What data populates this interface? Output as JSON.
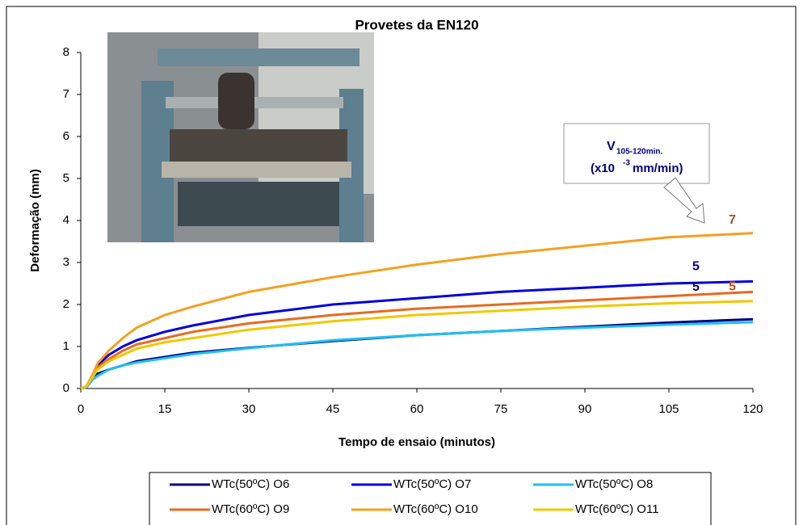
{
  "chart_data": {
    "type": "line",
    "title": "Provetes da EN120",
    "x_label": "Tempo de ensaio (minutos)",
    "y_label": "Deformação (mm)",
    "x": [
      0,
      1,
      2,
      3,
      5,
      7.5,
      10,
      15,
      20,
      30,
      45,
      60,
      75,
      90,
      105,
      120
    ],
    "xlim": [
      0,
      120
    ],
    "xticks": [
      0,
      15,
      30,
      45,
      60,
      75,
      90,
      105,
      120
    ],
    "ylim": [
      0,
      8
    ],
    "yticks": [
      0,
      1,
      2,
      3,
      4,
      5,
      6,
      7,
      8
    ],
    "series": [
      {
        "name": "WTc(50ºC) O6",
        "color": "#000080",
        "values": [
          0,
          0.03,
          0.2,
          0.35,
          0.45,
          0.55,
          0.65,
          0.75,
          0.85,
          0.97,
          1.13,
          1.27,
          1.37,
          1.47,
          1.57,
          1.65
        ]
      },
      {
        "name": "WTc(50ºC) O7",
        "color": "#0000e0",
        "values": [
          0,
          0.05,
          0.3,
          0.55,
          0.8,
          1.0,
          1.15,
          1.35,
          1.5,
          1.75,
          2.0,
          2.15,
          2.3,
          2.4,
          2.5,
          2.55
        ],
        "end_label": "5",
        "end_label_color": "#000080"
      },
      {
        "name": "WTc(50ºC) O8",
        "color": "#20c0f0",
        "values": [
          0,
          0.03,
          0.2,
          0.3,
          0.45,
          0.55,
          0.62,
          0.72,
          0.82,
          0.96,
          1.15,
          1.27,
          1.37,
          1.45,
          1.52,
          1.58
        ]
      },
      {
        "name": "WTc(60ºC) O9",
        "color": "#e86a20",
        "values": [
          0,
          0.05,
          0.3,
          0.5,
          0.7,
          0.9,
          1.05,
          1.2,
          1.35,
          1.55,
          1.75,
          1.9,
          2.0,
          2.1,
          2.2,
          2.3
        ],
        "end_label": "5",
        "end_label_color": "#c0501a"
      },
      {
        "name": "WTc(60ºC) O10",
        "color": "#f5a020",
        "values": [
          0,
          0.05,
          0.3,
          0.6,
          0.9,
          1.2,
          1.45,
          1.75,
          1.95,
          2.3,
          2.65,
          2.95,
          3.2,
          3.4,
          3.6,
          3.7
        ],
        "end_label": "7",
        "end_label_color": "#a0522d"
      },
      {
        "name": "WTc(60ºC) O11",
        "color": "#f0c800",
        "values": [
          0,
          0.05,
          0.25,
          0.45,
          0.65,
          0.8,
          0.95,
          1.1,
          1.2,
          1.4,
          1.6,
          1.75,
          1.85,
          1.95,
          2.03,
          2.08
        ],
        "end_label": "5",
        "end_label_color": "#000080"
      }
    ],
    "annotation": {
      "symbol": "V",
      "subscript": "105-120min.",
      "unit_prefix": "(x10",
      "unit_exponent": "-3",
      "unit_suffix": "mm/min)"
    }
  }
}
